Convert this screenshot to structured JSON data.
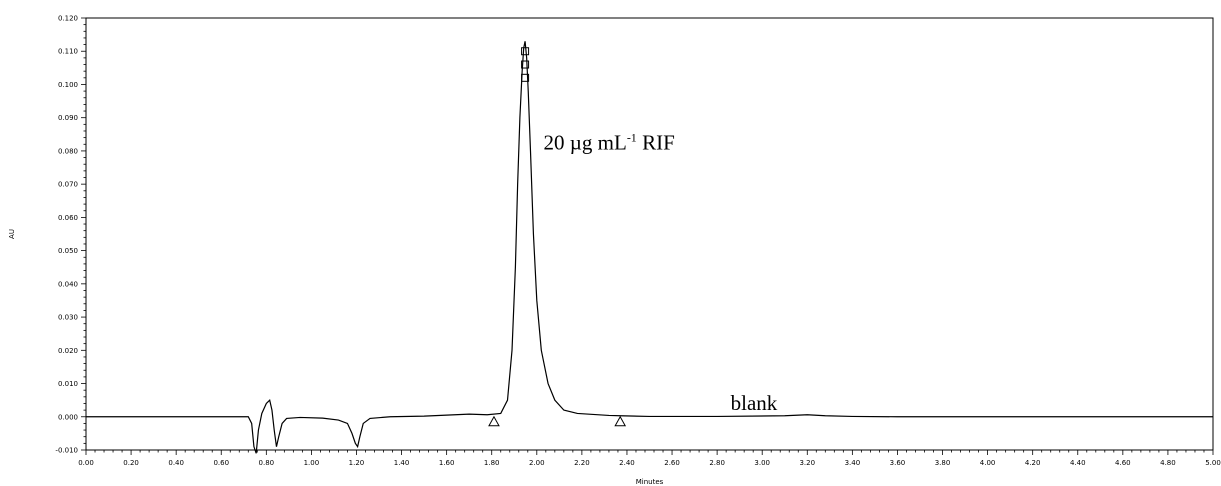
{
  "chart_data": {
    "type": "line",
    "xlabel": "Minutes",
    "ylabel": "AU",
    "xlim": [
      0.0,
      5.0
    ],
    "ylim": [
      -0.01,
      0.12
    ],
    "x_ticks": [
      "0.00",
      "0.20",
      "0.40",
      "0.60",
      "0.80",
      "1.00",
      "1.20",
      "1.40",
      "1.60",
      "1.80",
      "2.00",
      "2.20",
      "2.40",
      "2.60",
      "2.80",
      "3.00",
      "3.20",
      "3.40",
      "3.60",
      "3.80",
      "4.00",
      "4.20",
      "4.40",
      "4.60",
      "4.80",
      "5.00"
    ],
    "y_ticks": [
      "-0.010",
      "0.000",
      "0.010",
      "0.020",
      "0.030",
      "0.040",
      "0.050",
      "0.060",
      "0.070",
      "0.080",
      "0.090",
      "0.100",
      "0.110",
      "0.120"
    ],
    "grid": false,
    "series": [
      {
        "x": [
          0.0,
          0.72,
          0.735,
          0.745,
          0.755,
          0.765,
          0.78,
          0.8,
          0.815,
          0.825,
          0.835,
          0.845,
          0.855,
          0.87,
          0.89,
          0.95,
          1.05,
          1.12,
          1.16,
          1.18,
          1.195,
          1.205,
          1.215,
          1.23,
          1.26,
          1.35,
          1.5,
          1.6,
          1.7,
          1.78,
          1.84,
          1.87,
          1.89,
          1.905,
          1.915,
          1.925,
          1.935,
          1.942,
          1.948,
          1.955,
          1.962,
          1.972,
          1.985,
          2.0,
          2.02,
          2.05,
          2.08,
          2.12,
          2.18,
          2.25,
          2.32,
          2.37,
          2.5,
          2.8,
          3.1,
          3.2,
          3.28,
          3.4,
          3.6,
          5.0
        ],
        "y": [
          0.0,
          0.0,
          -0.002,
          -0.009,
          -0.011,
          -0.004,
          0.001,
          0.004,
          0.005,
          0.002,
          -0.004,
          -0.009,
          -0.006,
          -0.002,
          -0.0005,
          -0.0002,
          -0.0004,
          -0.001,
          -0.002,
          -0.005,
          -0.008,
          -0.009,
          -0.006,
          -0.002,
          -0.0005,
          0.0,
          0.0002,
          0.0005,
          0.0008,
          0.0006,
          0.001,
          0.005,
          0.02,
          0.045,
          0.07,
          0.09,
          0.104,
          0.111,
          0.113,
          0.108,
          0.098,
          0.08,
          0.055,
          0.035,
          0.02,
          0.01,
          0.005,
          0.002,
          0.001,
          0.0007,
          0.0004,
          0.0003,
          0.0001,
          0.0001,
          0.0003,
          0.0006,
          0.0003,
          0.0001,
          0.0,
          0.0
        ]
      }
    ],
    "integration_markers": [
      {
        "x": 1.81,
        "y": -0.0015
      },
      {
        "x": 2.37,
        "y": -0.0015
      }
    ],
    "peak_markers": [
      {
        "x": 1.948,
        "y": 0.11
      },
      {
        "x": 1.948,
        "y": 0.106
      },
      {
        "x": 1.948,
        "y": 0.102
      }
    ],
    "annotations": [
      {
        "text": "20 µg mL",
        "sup": "-1",
        "suffix": " RIF",
        "x": 2.03,
        "y": 0.0805
      },
      {
        "text": "blank",
        "x": 2.86,
        "y": 0.002
      }
    ]
  }
}
